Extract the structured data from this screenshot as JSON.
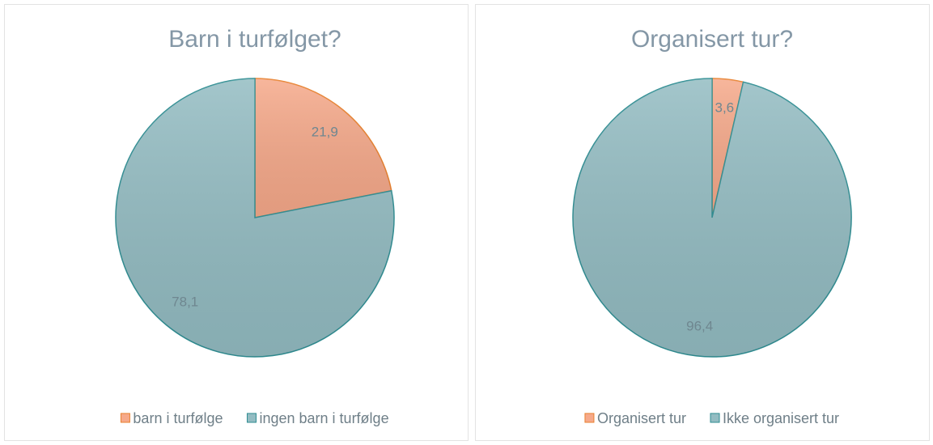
{
  "chart_data": [
    {
      "type": "pie",
      "title": "Barn i turfølget?",
      "categories": [
        "barn i turfølge",
        "ingen barn i turfølge"
      ],
      "values": [
        21.9,
        78.1
      ],
      "value_labels": [
        "21,9",
        "78,1"
      ],
      "colors": [
        "#f6a98a",
        "#93bcc2"
      ],
      "legend": "bottom"
    },
    {
      "type": "pie",
      "title": "Organisert tur?",
      "categories": [
        "Organisert tur",
        "Ikke organisert tur"
      ],
      "values": [
        3.6,
        96.4
      ],
      "value_labels": [
        "3,6",
        "96,4"
      ],
      "colors": [
        "#f6a98a",
        "#93bcc2"
      ],
      "legend": "bottom"
    }
  ]
}
